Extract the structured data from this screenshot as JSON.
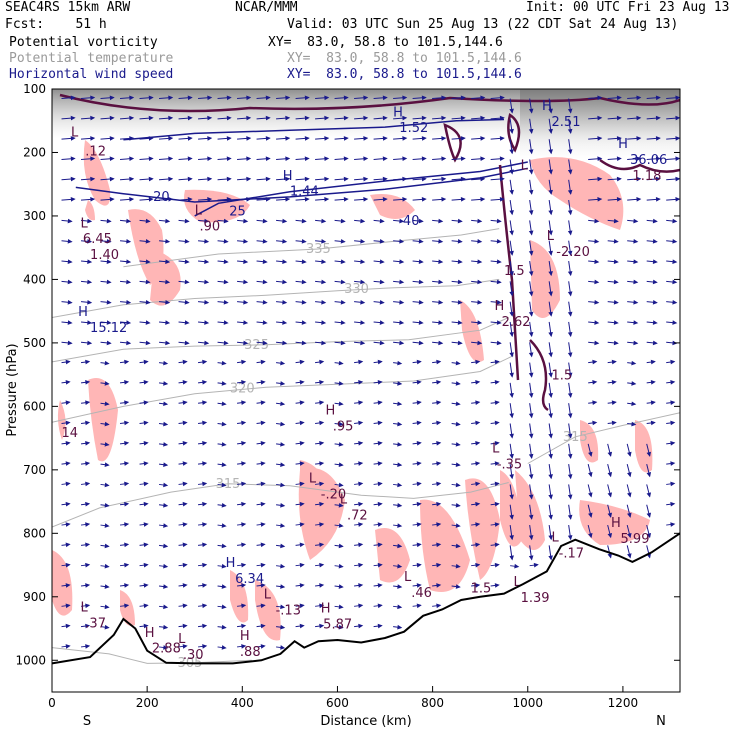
{
  "header": {
    "model": "SEAC4RS 15km ARW",
    "org": "NCAR/MMM",
    "init": "Init: 00 UTC Fri 23 Aug 13",
    "fcst": "Fcst:    51 h",
    "valid": "Valid: 03 UTC Sun 25 Aug 13 (22 CDT Sat 24 Aug 13)",
    "fields": [
      {
        "name": "Potential vorticity",
        "xy": "XY=  83.0, 58.8 to 101.5,144.6",
        "color": "#000000"
      },
      {
        "name": "Potential temperature",
        "xy": "XY=  83.0, 58.8 to 101.5,144.6",
        "color": "#9a9a9a"
      },
      {
        "name": "Horizontal wind speed",
        "xy": "XY=  83.0, 58.8 to 101.5,144.6",
        "color": "#1a1a8c"
      }
    ]
  },
  "chart_data": {
    "type": "cross-section",
    "xlabel": "Distance (km)",
    "ylabel": "Pressure (hPa)",
    "xlim": [
      0,
      1320
    ],
    "ylim": [
      1050,
      100
    ],
    "x_ticks": [
      0,
      200,
      400,
      600,
      800,
      1000,
      1200
    ],
    "y_ticks": [
      100,
      200,
      300,
      400,
      500,
      600,
      700,
      800,
      900,
      1000
    ],
    "endpoint_labels": {
      "left": "S",
      "right": "N"
    },
    "colors": {
      "pv_shade": "#ffb6b6",
      "pv_contour": "#5a1040",
      "theta_contour": "#b4b4b4",
      "wind_speed": "#1a1a8c",
      "terrain": "#000000",
      "strat_shade": "#8c8c8c"
    },
    "theta_contours": [
      {
        "value": 305,
        "label_at": [
          290,
          1004
        ],
        "points": [
          [
            0,
            980
          ],
          [
            120,
            990
          ],
          [
            200,
            1005
          ],
          [
            300,
            1004
          ],
          [
            420,
            1000
          ]
        ]
      },
      {
        "value": 315,
        "label_at": [
          370,
          722
        ],
        "points": [
          [
            0,
            790
          ],
          [
            100,
            760
          ],
          [
            250,
            735
          ],
          [
            370,
            722
          ],
          [
            500,
            725
          ],
          [
            650,
            740
          ],
          [
            760,
            745
          ],
          [
            880,
            735
          ],
          [
            960,
            720
          ]
        ]
      },
      {
        "value": 315,
        "label_at": [
          1100,
          648
        ],
        "points": [
          [
            1000,
            690
          ],
          [
            1100,
            648
          ],
          [
            1200,
            630
          ],
          [
            1320,
            610
          ]
        ]
      },
      {
        "value": 320,
        "label_at": [
          400,
          572
        ],
        "points": [
          [
            0,
            625
          ],
          [
            150,
            600
          ],
          [
            300,
            580
          ],
          [
            450,
            570
          ],
          [
            600,
            565
          ],
          [
            760,
            560
          ],
          [
            900,
            545
          ],
          [
            970,
            520
          ]
        ]
      },
      {
        "value": 325,
        "label_at": [
          430,
          503
        ],
        "points": [
          [
            0,
            530
          ],
          [
            150,
            510
          ],
          [
            300,
            505
          ],
          [
            450,
            503
          ],
          [
            600,
            498
          ],
          [
            750,
            495
          ],
          [
            900,
            480
          ],
          [
            960,
            460
          ]
        ]
      },
      {
        "value": 330,
        "label_at": [
          640,
          415
        ],
        "points": [
          [
            0,
            460
          ],
          [
            150,
            440
          ],
          [
            300,
            430
          ],
          [
            450,
            425
          ],
          [
            600,
            418
          ],
          [
            720,
            413
          ],
          [
            850,
            410
          ],
          [
            940,
            400
          ]
        ]
      },
      {
        "value": 335,
        "label_at": [
          560,
          352
        ],
        "points": [
          [
            150,
            380
          ],
          [
            350,
            360
          ],
          [
            560,
            352
          ],
          [
            720,
            340
          ],
          [
            860,
            330
          ],
          [
            940,
            320
          ]
        ]
      }
    ],
    "wind_speed_contours": [
      {
        "value": 20,
        "label_at": [
          230,
          270
        ],
        "points": [
          [
            50,
            255
          ],
          [
            150,
            265
          ],
          [
            300,
            278
          ],
          [
            500,
            270
          ],
          [
            700,
            258
          ],
          [
            900,
            240
          ],
          [
            1000,
            225
          ]
        ]
      },
      {
        "value": 25,
        "label_at": [
          390,
          293
        ],
        "points": [
          [
            300,
            300
          ],
          [
            350,
            280
          ],
          [
            500,
            262
          ],
          [
            700,
            245
          ],
          [
            900,
            230
          ],
          [
            1000,
            215
          ]
        ]
      },
      {
        "value": 40,
        "label_at": [
          755,
          308
        ],
        "points": [
          [
            150,
            180
          ],
          [
            300,
            170
          ],
          [
            500,
            165
          ],
          [
            700,
            160
          ],
          [
            850,
            150
          ],
          [
            950,
            148
          ]
        ]
      }
    ],
    "extrema_labels": [
      {
        "text": "L",
        "x": 40,
        "y": 175,
        "color": "#5a1040"
      },
      {
        "text": ".12",
        "x": 70,
        "y": 205,
        "color": "#5a1040"
      },
      {
        "text": "L",
        "x": 60,
        "y": 318,
        "color": "#5a1040"
      },
      {
        "text": "6.45",
        "x": 65,
        "y": 343,
        "color": "#5a1040"
      },
      {
        "text": "1.40",
        "x": 80,
        "y": 368,
        "color": "#5a1040"
      },
      {
        "text": "H",
        "x": 55,
        "y": 458,
        "color": "#1a1a8c"
      },
      {
        "text": "15.12",
        "x": 80,
        "y": 483,
        "color": "#1a1a8c"
      },
      {
        "text": "14",
        "x": 20,
        "y": 648,
        "color": "#5a1040"
      },
      {
        "text": "L",
        "x": 300,
        "y": 298,
        "color": "#5a1040"
      },
      {
        "text": ".90",
        "x": 310,
        "y": 323,
        "color": "#5a1040"
      },
      {
        "text": "H",
        "x": 485,
        "y": 243,
        "color": "#1a1a8c"
      },
      {
        "text": "1.44",
        "x": 500,
        "y": 268,
        "color": "#1a1a8c"
      },
      {
        "text": "H",
        "x": 717,
        "y": 143,
        "color": "#1a1a8c"
      },
      {
        "text": "1.52",
        "x": 730,
        "y": 168,
        "color": "#1a1a8c"
      },
      {
        "text": "H",
        "x": 1030,
        "y": 133,
        "color": "#1a1a8c"
      },
      {
        "text": "2.51",
        "x": 1050,
        "y": 158,
        "color": "#1a1a8c"
      },
      {
        "text": "L",
        "x": 985,
        "y": 227,
        "color": "#5a1040"
      },
      {
        "text": "H",
        "x": 1190,
        "y": 193,
        "color": "#1a1a8c"
      },
      {
        "text": "36.06",
        "x": 1215,
        "y": 218,
        "color": "#1a1a8c"
      },
      {
        "text": "1.18",
        "x": 1220,
        "y": 243,
        "color": "#5a1040"
      },
      {
        "text": "L",
        "x": 1040,
        "y": 338,
        "color": "#5a1040"
      },
      {
        "text": "-2.20",
        "x": 1060,
        "y": 363,
        "color": "#5a1040"
      },
      {
        "text": "1.5",
        "x": 950,
        "y": 393,
        "color": "#5a1040"
      },
      {
        "text": "H",
        "x": 930,
        "y": 448,
        "color": "#5a1040"
      },
      {
        "text": "2.62",
        "x": 945,
        "y": 473,
        "color": "#5a1040"
      },
      {
        "text": "1.5",
        "x": 1050,
        "y": 558,
        "color": "#5a1040"
      },
      {
        "text": "H",
        "x": 575,
        "y": 613,
        "color": "#5a1040"
      },
      {
        "text": ".95",
        "x": 590,
        "y": 638,
        "color": "#5a1040"
      },
      {
        "text": "L",
        "x": 925,
        "y": 673,
        "color": "#5a1040"
      },
      {
        "text": "-.35",
        "x": 935,
        "y": 698,
        "color": "#5a1040"
      },
      {
        "text": "L",
        "x": 540,
        "y": 720,
        "color": "#5a1040"
      },
      {
        "text": "-.20",
        "x": 565,
        "y": 745,
        "color": "#5a1040"
      },
      {
        "text": "L",
        "x": 605,
        "y": 753,
        "color": "#5a1040"
      },
      {
        "text": ".72",
        "x": 620,
        "y": 778,
        "color": "#5a1040"
      },
      {
        "text": "L",
        "x": 1050,
        "y": 813,
        "color": "#5a1040"
      },
      {
        "text": "-.17",
        "x": 1065,
        "y": 838,
        "color": "#5a1040"
      },
      {
        "text": "H",
        "x": 1175,
        "y": 790,
        "color": "#5a1040"
      },
      {
        "text": "5.99",
        "x": 1195,
        "y": 815,
        "color": "#5a1040"
      },
      {
        "text": "H",
        "x": 365,
        "y": 853,
        "color": "#1a1a8c"
      },
      {
        "text": "6.34",
        "x": 385,
        "y": 878,
        "color": "#1a1a8c"
      },
      {
        "text": "L",
        "x": 445,
        "y": 903,
        "color": "#5a1040"
      },
      {
        "text": "-.13",
        "x": 470,
        "y": 928,
        "color": "#5a1040"
      },
      {
        "text": "H",
        "x": 565,
        "y": 925,
        "color": "#5a1040"
      },
      {
        "text": "5.87",
        "x": 570,
        "y": 950,
        "color": "#5a1040"
      },
      {
        "text": "L",
        "x": 740,
        "y": 875,
        "color": "#5a1040"
      },
      {
        "text": ".46",
        "x": 755,
        "y": 900,
        "color": "#5a1040"
      },
      {
        "text": "1.5",
        "x": 880,
        "y": 893,
        "color": "#5a1040"
      },
      {
        "text": "L",
        "x": 970,
        "y": 883,
        "color": "#5a1040"
      },
      {
        "text": "1.39",
        "x": 985,
        "y": 908,
        "color": "#5a1040"
      },
      {
        "text": "L",
        "x": 60,
        "y": 923,
        "color": "#5a1040"
      },
      {
        "text": ".37",
        "x": 70,
        "y": 948,
        "color": "#5a1040"
      },
      {
        "text": "H",
        "x": 195,
        "y": 963,
        "color": "#5a1040"
      },
      {
        "text": "2.88",
        "x": 210,
        "y": 988,
        "color": "#5a1040"
      },
      {
        "text": "L",
        "x": 265,
        "y": 973,
        "color": "#5a1040"
      },
      {
        "text": ".30",
        "x": 275,
        "y": 998,
        "color": "#5a1040"
      },
      {
        "text": "H",
        "x": 395,
        "y": 968,
        "color": "#5a1040"
      },
      {
        "text": ".88",
        "x": 395,
        "y": 993,
        "color": "#5a1040"
      }
    ],
    "terrain": [
      [
        0,
        1005
      ],
      [
        80,
        995
      ],
      [
        130,
        960
      ],
      [
        150,
        935
      ],
      [
        175,
        950
      ],
      [
        200,
        985
      ],
      [
        240,
        1004
      ],
      [
        300,
        1005
      ],
      [
        380,
        1005
      ],
      [
        440,
        1000
      ],
      [
        480,
        990
      ],
      [
        510,
        970
      ],
      [
        530,
        980
      ],
      [
        560,
        970
      ],
      [
        600,
        968
      ],
      [
        650,
        972
      ],
      [
        700,
        965
      ],
      [
        740,
        955
      ],
      [
        780,
        930
      ],
      [
        820,
        920
      ],
      [
        860,
        905
      ],
      [
        900,
        900
      ],
      [
        950,
        895
      ],
      [
        990,
        880
      ],
      [
        1040,
        860
      ],
      [
        1070,
        820
      ],
      [
        1100,
        810
      ],
      [
        1150,
        825
      ],
      [
        1190,
        835
      ],
      [
        1220,
        845
      ],
      [
        1260,
        830
      ],
      [
        1300,
        810
      ],
      [
        1320,
        800
      ]
    ]
  }
}
